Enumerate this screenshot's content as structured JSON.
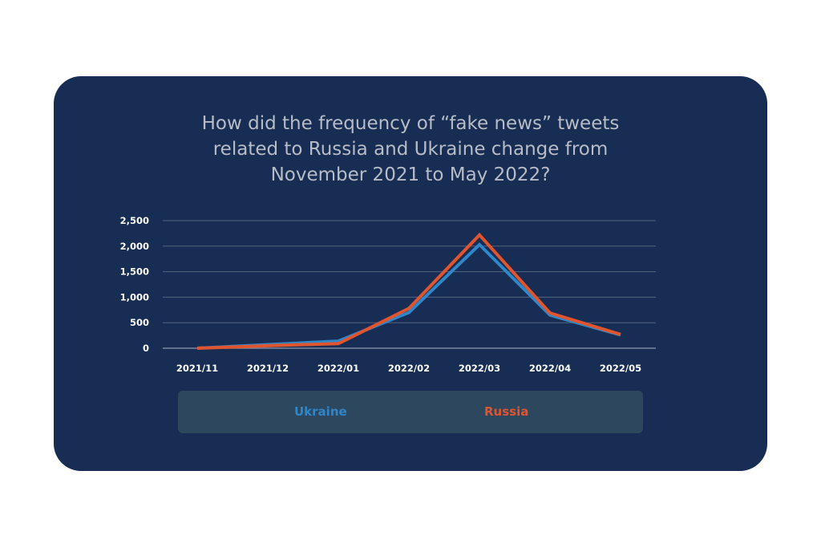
{
  "chart_data": {
    "type": "line",
    "title_lines": [
      "How did the frequency of “fake news” tweets",
      "related to Russia and Ukraine change from",
      "November 2021 to May 2022?"
    ],
    "xlabel": "",
    "ylabel": "",
    "categories": [
      "2021/11",
      "2021/12",
      "2022/01",
      "2022/02",
      "2022/03",
      "2022/04",
      "2022/05"
    ],
    "y_ticks": [
      0,
      500,
      1000,
      1500,
      2000,
      2500
    ],
    "y_tick_labels": [
      "0",
      "500",
      "1,000",
      "1,500",
      "2,000",
      "2,500"
    ],
    "ylim": [
      0,
      2500
    ],
    "grid": true,
    "legend_position": "bottom",
    "series": [
      {
        "name": "Ukraine",
        "color": "#2f86c8",
        "values": [
          0,
          70,
          140,
          700,
          2030,
          650,
          260
        ]
      },
      {
        "name": "Russia",
        "color": "#e1552e",
        "values": [
          0,
          50,
          90,
          780,
          2220,
          690,
          270
        ]
      }
    ]
  },
  "colors": {
    "card_background": "#172d54",
    "gridline": "#55657f",
    "axis_text": "#ffffff",
    "title_text": "#b7bcc6",
    "legend_background": "#2d475e"
  }
}
